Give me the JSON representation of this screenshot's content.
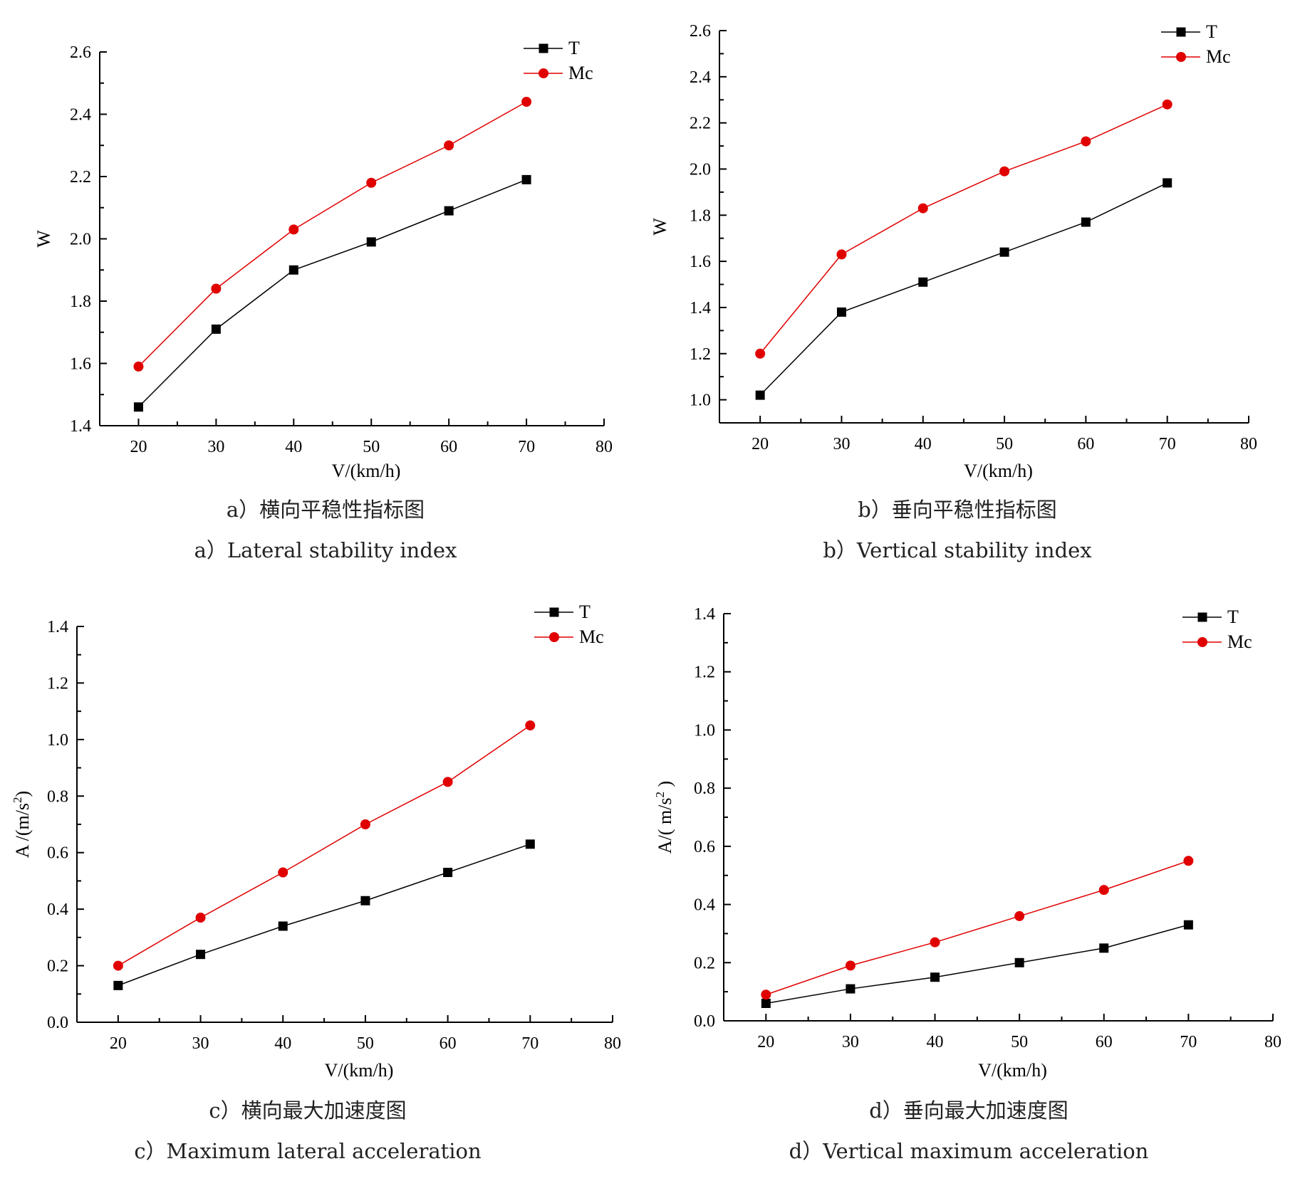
{
  "chart_data": [
    {
      "type": "line",
      "ylabel": "W",
      "ylabel_sup": "",
      "xlabel": "V/(km/h)",
      "xlim": [
        15,
        80
      ],
      "ylim": [
        1.4,
        2.6
      ],
      "xticks": [
        "20",
        "30",
        "40",
        "50",
        "60",
        "70",
        "80"
      ],
      "yticks": [
        "1.4",
        "1.6",
        "1.8",
        "2.0",
        "2.2",
        "2.4",
        "2.6"
      ],
      "legend_position": "top-right",
      "x": [
        20,
        30,
        40,
        50,
        60,
        70
      ],
      "series": [
        {
          "name": "T",
          "color": "#000000",
          "marker": "square",
          "values": [
            1.46,
            1.71,
            1.9,
            1.99,
            2.09,
            2.19
          ]
        },
        {
          "name": "Mc",
          "color": "#e00000",
          "marker": "circle",
          "values": [
            1.59,
            1.84,
            2.03,
            2.18,
            2.3,
            2.44
          ]
        }
      ],
      "caption_cn": "a）横向平稳性指标图",
      "caption_en": "a）Lateral stability index"
    },
    {
      "type": "line",
      "ylabel": "W",
      "ylabel_sup": "",
      "xlabel": "V/(km/h)",
      "xlim": [
        15,
        80
      ],
      "ylim": [
        0.9,
        2.6
      ],
      "xticks": [
        "20",
        "30",
        "40",
        "50",
        "60",
        "70",
        "80"
      ],
      "yticks": [
        "1.0",
        "1.2",
        "1.4",
        "1.6",
        "1.8",
        "2.0",
        "2.2",
        "2.4",
        "2.6"
      ],
      "legend_position": "top-right",
      "x": [
        20,
        30,
        40,
        50,
        60,
        70
      ],
      "series": [
        {
          "name": "T",
          "color": "#000000",
          "marker": "square",
          "values": [
            1.02,
            1.38,
            1.51,
            1.64,
            1.77,
            1.94
          ]
        },
        {
          "name": "Mc",
          "color": "#e00000",
          "marker": "circle",
          "values": [
            1.2,
            1.63,
            1.83,
            1.99,
            2.12,
            2.28
          ]
        }
      ],
      "caption_cn": "b）垂向平稳性指标图",
      "caption_en": "b）Vertical stability index"
    },
    {
      "type": "line",
      "ylabel": "A /(m/s",
      "ylabel_sup": "2",
      "ylabel_suffix": ")",
      "xlabel": "V/(km/h)",
      "xlim": [
        15,
        80
      ],
      "ylim": [
        0.0,
        1.4
      ],
      "xticks": [
        "20",
        "30",
        "40",
        "50",
        "60",
        "70",
        "80"
      ],
      "yticks": [
        "0.0",
        "0.2",
        "0.4",
        "0.6",
        "0.8",
        "1.0",
        "1.2",
        "1.4"
      ],
      "legend_position": "top-right",
      "x": [
        20,
        30,
        40,
        50,
        60,
        70
      ],
      "series": [
        {
          "name": "T",
          "color": "#000000",
          "marker": "square",
          "values": [
            0.13,
            0.24,
            0.34,
            0.43,
            0.53,
            0.63
          ]
        },
        {
          "name": "Mc",
          "color": "#e00000",
          "marker": "circle",
          "values": [
            0.2,
            0.37,
            0.53,
            0.7,
            0.85,
            1.05
          ]
        }
      ],
      "caption_cn": "c）横向最大加速度图",
      "caption_en": "c）Maximum lateral acceleration"
    },
    {
      "type": "line",
      "ylabel": "A/( m/s",
      "ylabel_sup": "2",
      "ylabel_suffix": " )",
      "xlabel": "V/(km/h)",
      "xlim": [
        15,
        80
      ],
      "ylim": [
        0.0,
        1.4
      ],
      "xticks": [
        "20",
        "30",
        "40",
        "50",
        "60",
        "70",
        "80"
      ],
      "yticks": [
        "0.0",
        "0.2",
        "0.4",
        "0.6",
        "0.8",
        "1.0",
        "1.2",
        "1.4"
      ],
      "legend_position": "top-right",
      "x": [
        20,
        30,
        40,
        50,
        60,
        70
      ],
      "series": [
        {
          "name": "T",
          "color": "#000000",
          "marker": "square",
          "values": [
            0.06,
            0.11,
            0.15,
            0.2,
            0.25,
            0.33
          ]
        },
        {
          "name": "Mc",
          "color": "#e00000",
          "marker": "circle",
          "values": [
            0.09,
            0.19,
            0.27,
            0.36,
            0.45,
            0.55
          ]
        }
      ],
      "caption_cn": "d）垂向最大加速度图",
      "caption_en": "d）Vertical maximum acceleration"
    }
  ]
}
